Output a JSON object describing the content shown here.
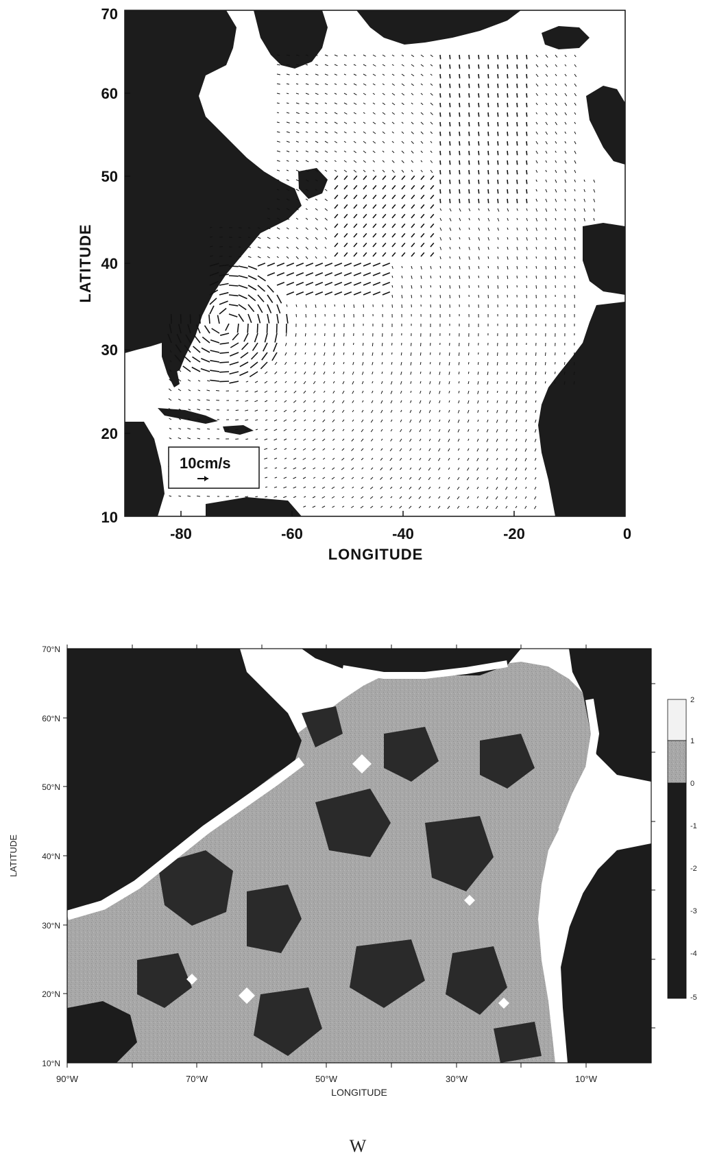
{
  "top_map": {
    "xlabel": "LONGITUDE",
    "ylabel": "LATITUDE",
    "x_ticks": [
      "-80",
      "-60",
      "-40",
      "-20",
      "0"
    ],
    "y_ticks": [
      "70",
      "60",
      "50",
      "40",
      "30",
      "20",
      "10"
    ],
    "x_range": [
      -90,
      0
    ],
    "y_range": [
      10,
      70
    ],
    "scale_label": "10cm/s",
    "land_color": "#1c1c1c",
    "ocean_color": "#ffffff"
  },
  "bottom_map": {
    "xlabel": "LONGITUDE",
    "ylabel": "LATITUDE",
    "x_ticks": [
      "90°W",
      "70°W",
      "50°W",
      "30°W",
      "10°W"
    ],
    "y_ticks": [
      "70°N",
      "60°N",
      "50°N",
      "40°N",
      "30°N",
      "20°N",
      "10°N"
    ],
    "x_range": [
      -90,
      0
    ],
    "y_range": [
      10,
      70
    ],
    "colorbar_ticks": [
      "2",
      "1",
      "0",
      "-1",
      "-2",
      "-3",
      "-4",
      "-5"
    ],
    "colorbar_range": [
      -5,
      2
    ],
    "land_color": "#1c1c1c",
    "field_light": "#a8a8a8",
    "field_dark": "#2a2a2a"
  },
  "caption": "W"
}
